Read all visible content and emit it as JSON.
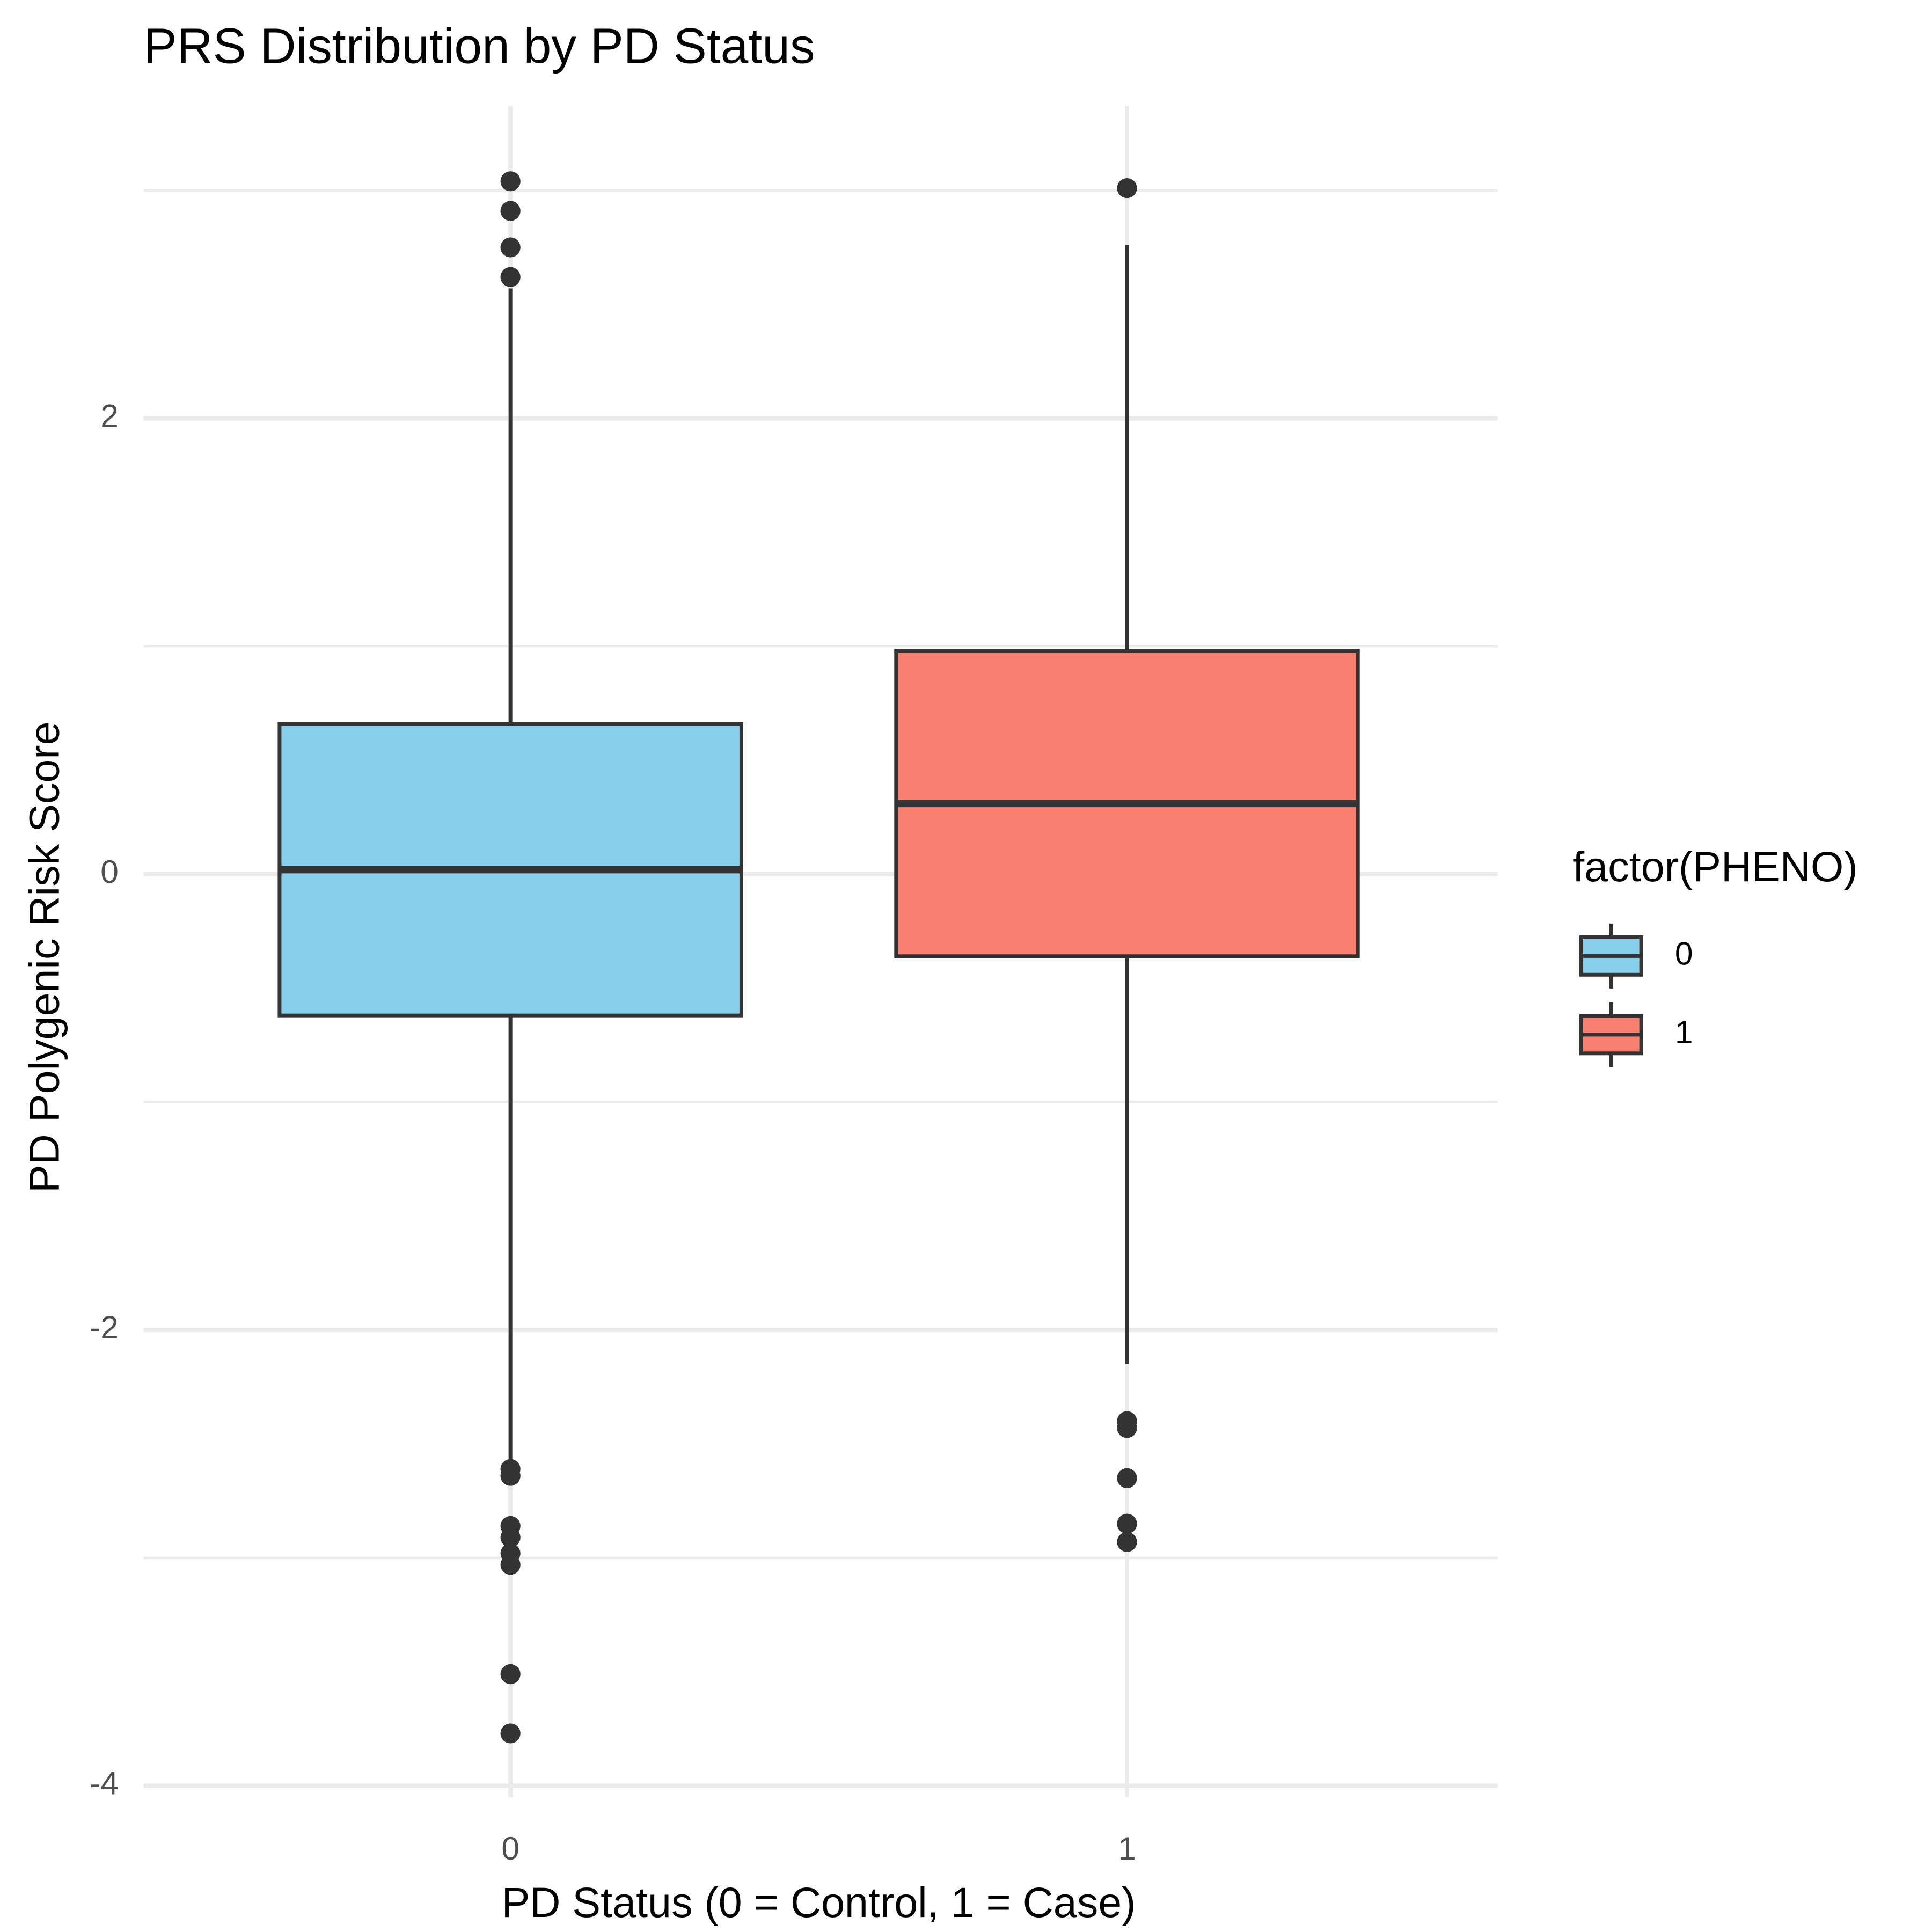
{
  "chart_data": {
    "type": "box",
    "title": "PRS Distribution by PD Status",
    "x_label": "PD Status (0 = Control, 1 = Case)",
    "y_label": "PD Polygenic Risk Score",
    "legend_title": "factor(PHENO)",
    "categories": [
      "0",
      "1"
    ],
    "ylim": [
      -4.05,
      3.37
    ],
    "yticks": [
      -4,
      -2,
      0,
      2
    ],
    "minor_yticks": [
      -3,
      -1,
      1,
      3
    ],
    "grid": true,
    "legend": "right",
    "series": [
      {
        "name": "0",
        "color": "#87CEEB",
        "q1": -0.62,
        "median": 0.02,
        "q3": 0.66,
        "whisker_low": -2.57,
        "whisker_high": 2.57,
        "outliers": [
          3.04,
          2.91,
          2.75,
          2.62,
          -2.61,
          -2.64,
          -2.86,
          -2.91,
          -2.98,
          -3.03,
          -3.51,
          -3.77
        ]
      },
      {
        "name": "1",
        "color": "#FA8072",
        "q1": -0.36,
        "median": 0.31,
        "q3": 0.98,
        "whisker_low": -2.15,
        "whisker_high": 2.76,
        "outliers": [
          3.01,
          -2.4,
          -2.43,
          -2.65,
          -2.85,
          -2.93
        ]
      }
    ]
  }
}
